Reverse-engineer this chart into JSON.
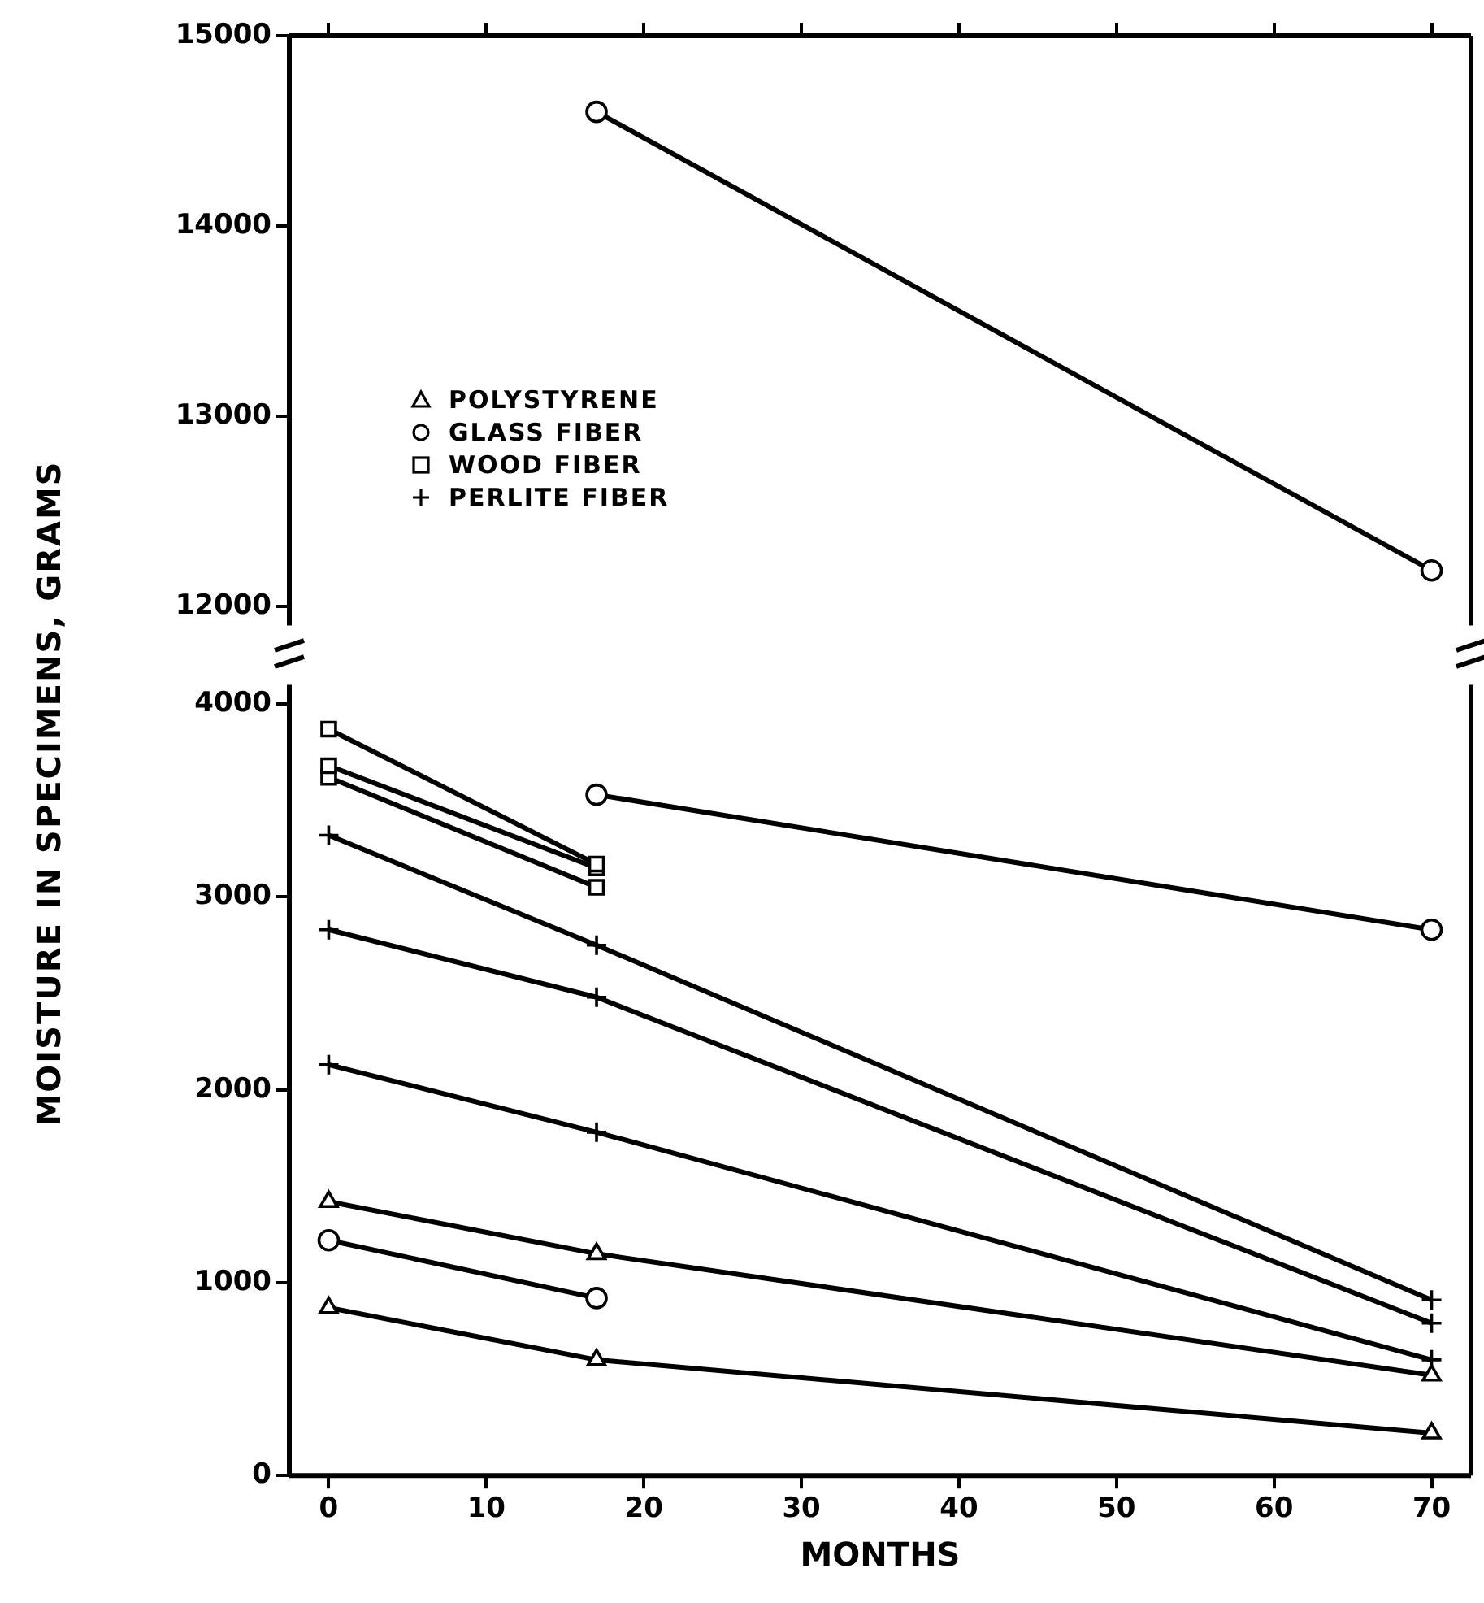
{
  "chart_data": [
    {
      "type": "line",
      "xlim": [
        -2.5,
        72.5
      ],
      "xticks": [
        0,
        10,
        20,
        30,
        40,
        50,
        60,
        70
      ],
      "ylim": [
        11900,
        15000
      ],
      "yticks": [
        12000,
        13000,
        14000,
        15000
      ],
      "tick_labels": "y",
      "grid": false,
      "legend": false,
      "series": [
        {
          "color": "#000000",
          "marker": "circle",
          "x": [
            17,
            70
          ],
          "values": [
            14600,
            12190
          ]
        }
      ]
    },
    {
      "type": "line",
      "xlabel": "MONTHS",
      "ylabel": "MOISTURE IN SPECIMENS, GRAMS",
      "xlim": [
        -2.5,
        72.5
      ],
      "xticks": [
        0,
        10,
        20,
        30,
        40,
        50,
        60,
        70
      ],
      "ylim": [
        0,
        4100
      ],
      "yticks": [
        0,
        1000,
        2000,
        3000,
        4000
      ],
      "grid": false,
      "legend": "top left",
      "series": [
        {
          "name": "POLYSTYRENE",
          "color": "#000000",
          "marker": "triangle",
          "x": [
            0,
            17,
            70
          ],
          "values": [
            1420,
            1150,
            520
          ]
        },
        {
          "name": "GLASS FIBER",
          "color": "#000000",
          "marker": "circle",
          "x": [
            0,
            17
          ],
          "values": [
            1220,
            920
          ]
        },
        {
          "name": "WOOD FIBER",
          "color": "#000000",
          "marker": "square",
          "x": [
            0,
            17
          ],
          "values": [
            3870,
            3170
          ]
        },
        {
          "name": "PERLITE FIBER",
          "color": "#000000",
          "marker": "cross",
          "x": [
            0,
            17,
            70
          ],
          "values": [
            3320,
            2750,
            910
          ]
        },
        {
          "color": "#000000",
          "marker": "triangle",
          "x": [
            0,
            17,
            70
          ],
          "values": [
            870,
            600,
            220
          ]
        },
        {
          "color": "#000000",
          "marker": "circle",
          "x": [
            17,
            70
          ],
          "values": [
            3530,
            2830
          ]
        },
        {
          "color": "#000000",
          "marker": "square",
          "x": [
            0,
            17
          ],
          "values": [
            3680,
            3150
          ]
        },
        {
          "color": "#000000",
          "marker": "square",
          "x": [
            0,
            17
          ],
          "values": [
            3620,
            3050
          ]
        },
        {
          "color": "#000000",
          "marker": "cross",
          "x": [
            0,
            17,
            70
          ],
          "values": [
            2830,
            2480,
            790
          ]
        },
        {
          "color": "#000000",
          "marker": "cross",
          "x": [
            0,
            17,
            70
          ],
          "values": [
            2130,
            1780,
            600
          ]
        }
      ]
    }
  ]
}
